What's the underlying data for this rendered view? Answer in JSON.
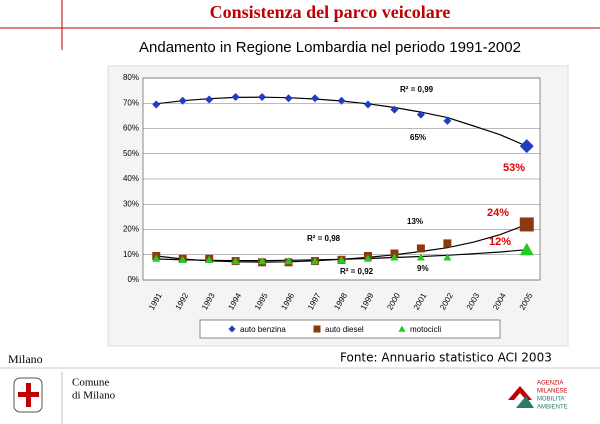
{
  "header": {
    "title": "Consistenza del parco veicolare",
    "subtitle": "Andamento in Regione Lombardia nel periodo 1991-2002"
  },
  "chart_data": {
    "type": "line",
    "categories": [
      "1991",
      "1992",
      "1993",
      "1994",
      "1995",
      "1996",
      "1997",
      "1998",
      "1999",
      "2000",
      "2001",
      "2002",
      "2003",
      "2004",
      "2005"
    ],
    "series": [
      {
        "name": "auto benzina",
        "color": "#1f3fbf",
        "marker": "diamond",
        "values": [
          69.5,
          71,
          71.5,
          72.5,
          72.5,
          72,
          72,
          71,
          69.5,
          67.5,
          65.5,
          63,
          null,
          null,
          53
        ]
      },
      {
        "name": "auto diesel",
        "color": "#8b3a0f",
        "marker": "square",
        "values": [
          9.5,
          8.5,
          8.5,
          7.5,
          7,
          7,
          7.5,
          8,
          9.5,
          10.5,
          12.5,
          14.5,
          null,
          null,
          22
        ]
      },
      {
        "name": "motocicli",
        "color": "#22cc22",
        "marker": "triangle",
        "values": [
          8.5,
          8,
          8,
          7.5,
          7.5,
          7.5,
          7.5,
          8,
          8.5,
          9,
          9,
          9,
          null,
          null,
          12
        ]
      }
    ],
    "trendlines": [
      {
        "color": "#000000",
        "values": [
          69.8,
          71,
          71.8,
          72.3,
          72.4,
          72.2,
          71.7,
          70.9,
          69.8,
          68.3,
          66.5,
          64.3,
          61,
          57.5,
          53
        ]
      },
      {
        "color": "#000000",
        "values": [
          9.5,
          8.3,
          7.6,
          7.2,
          7.1,
          7.2,
          7.6,
          8.2,
          9,
          10,
          11.3,
          12.8,
          15,
          18,
          22
        ]
      },
      {
        "color": "#000000",
        "values": [
          8.3,
          8,
          7.8,
          7.7,
          7.7,
          7.8,
          8,
          8.2,
          8.5,
          8.9,
          9.3,
          9.8,
          10.4,
          11.1,
          12
        ]
      }
    ],
    "ylim": [
      0,
      80
    ],
    "yticks": [
      {
        "value": 0,
        "label": "0%"
      },
      {
        "value": 10,
        "label": "10%"
      },
      {
        "value": 20,
        "label": "20%"
      },
      {
        "value": 30,
        "label": "30%"
      },
      {
        "value": 40,
        "label": "40%"
      },
      {
        "value": 50,
        "label": "50%"
      },
      {
        "value": 60,
        "label": "60%"
      },
      {
        "value": 70,
        "label": "70%"
      },
      {
        "value": 80,
        "label": "80%"
      }
    ],
    "grid": true,
    "annotations": [
      "R² = 0,99",
      "65%",
      "53%",
      "13%",
      "24%",
      "R² = 0,98",
      "12%",
      "R² = 0,92",
      "9%"
    ]
  },
  "footer": {
    "source": "Fonte: Annuario statistico ACI 2003",
    "city": "Milano",
    "comune": [
      "Comune",
      "di Milano"
    ],
    "agency": [
      "AGENZIA",
      "MILANESE",
      "MOBILITA'",
      "AMBIENTE"
    ]
  }
}
